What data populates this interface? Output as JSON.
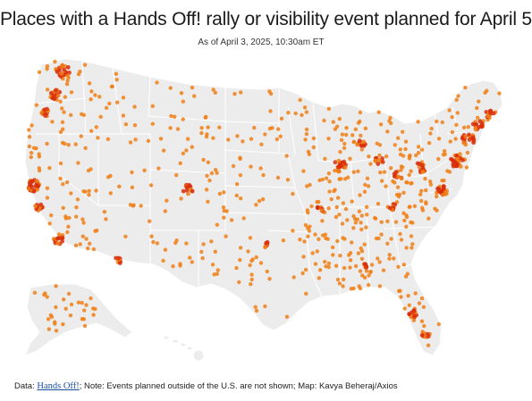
{
  "header": {
    "title": "Places with a Hands Off! rally or visibility event planned for April 5",
    "subtitle": "As of April 3, 2025, 10:30am ET"
  },
  "map": {
    "land_color": "#ececec",
    "border_color": "#ffffff",
    "marker_color": "#f07f16",
    "cluster_color": "#d92e0a",
    "regions": [
      "contiguous-us",
      "alaska",
      "hawaii"
    ]
  },
  "footer": {
    "data_label": "Data: ",
    "source_link": "Hands Off!",
    "note": "; Note: Events planned outside of the U.S. are not shown; Map: Kavya Beheraj/Axios"
  }
}
